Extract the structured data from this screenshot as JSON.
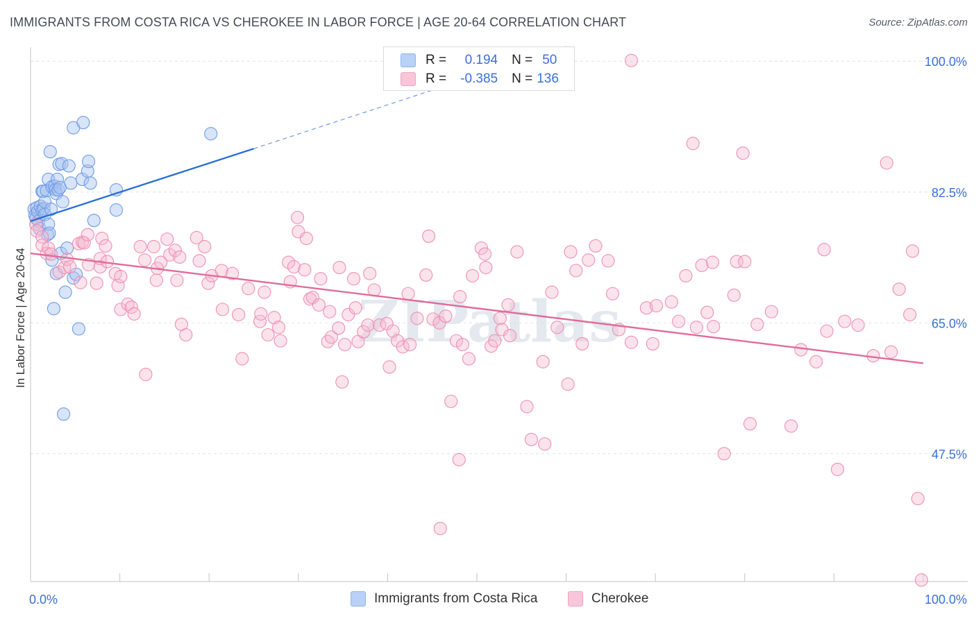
{
  "title": "IMMIGRANTS FROM COSTA RICA VS CHEROKEE IN LABOR FORCE | AGE 20-64 CORRELATION CHART",
  "source": "Source: ZipAtlas.com",
  "watermark": "ZIPatlas",
  "legend": {
    "row1": {
      "r_label": "R =",
      "r_value": "0.194",
      "n_label": "N =",
      "n_value": "50"
    },
    "row2": {
      "r_label": "R =",
      "r_value": "-0.385",
      "n_label": "N =",
      "n_value": "136"
    }
  },
  "chart_data": {
    "type": "scatter",
    "ylabel": "In Labor Force | Age 20-64",
    "xlabel": "",
    "x_tick_labels": [
      "0.0%",
      "100.0%"
    ],
    "y_tick_labels": [
      "100.0%",
      "82.5%",
      "65.0%",
      "47.5%"
    ],
    "y_ticks": [
      100.0,
      82.5,
      65.0,
      47.5
    ],
    "xlim": [
      0,
      100
    ],
    "ylim": [
      30.4,
      101.6
    ],
    "grid": true,
    "colors": {
      "blue": "#6e9be6",
      "pink": "#ee8fb2",
      "blue_line": "#2c6fd4",
      "pink_line": "#e06b9a"
    },
    "series": [
      {
        "name": "Immigrants from Costa Rica",
        "color": "#6e9be6",
        "trend": {
          "x": [
            0,
            25
          ],
          "y": [
            78.6,
            88.3
          ],
          "dashed_to": [
            60,
            102.0
          ]
        },
        "points": [
          [
            0.4,
            80.2
          ],
          [
            0.5,
            79.4
          ],
          [
            0.6,
            79.0
          ],
          [
            0.7,
            80.4
          ],
          [
            0.8,
            79.9
          ],
          [
            0.9,
            78.6
          ],
          [
            1.0,
            77.6
          ],
          [
            1.1,
            80.6
          ],
          [
            1.3,
            82.6
          ],
          [
            1.3,
            80.1
          ],
          [
            1.4,
            82.6
          ],
          [
            1.5,
            80.3
          ],
          [
            1.6,
            79.5
          ],
          [
            1.6,
            81.2
          ],
          [
            1.8,
            82.7
          ],
          [
            1.9,
            76.8
          ],
          [
            2.0,
            78.2
          ],
          [
            2.0,
            84.2
          ],
          [
            2.1,
            77.0
          ],
          [
            2.2,
            87.9
          ],
          [
            2.3,
            80.2
          ],
          [
            2.4,
            83.2
          ],
          [
            2.4,
            73.4
          ],
          [
            2.6,
            66.9
          ],
          [
            2.7,
            83.3
          ],
          [
            2.8,
            82.8
          ],
          [
            2.9,
            82.3
          ],
          [
            2.9,
            71.6
          ],
          [
            3.0,
            84.2
          ],
          [
            3.1,
            82.8
          ],
          [
            3.2,
            86.2
          ],
          [
            3.3,
            83.1
          ],
          [
            3.4,
            74.3
          ],
          [
            3.5,
            86.3
          ],
          [
            3.6,
            81.2
          ],
          [
            3.7,
            52.8
          ],
          [
            3.9,
            69.1
          ],
          [
            4.1,
            75.0
          ],
          [
            4.3,
            86.0
          ],
          [
            4.5,
            83.7
          ],
          [
            4.8,
            91.1
          ],
          [
            4.8,
            71.0
          ],
          [
            5.1,
            71.5
          ],
          [
            5.4,
            64.2
          ],
          [
            5.8,
            84.2
          ],
          [
            5.9,
            91.8
          ],
          [
            6.4,
            85.3
          ],
          [
            6.5,
            86.6
          ],
          [
            6.7,
            83.7
          ],
          [
            7.1,
            78.7
          ],
          [
            9.6,
            82.8
          ],
          [
            9.6,
            80.1
          ],
          [
            20.2,
            90.3
          ]
        ]
      },
      {
        "name": "Cherokee",
        "color": "#ee8fb2",
        "trend": {
          "x": [
            0,
            100
          ],
          "y": [
            74.3,
            59.6
          ]
        },
        "points": [
          [
            0.6,
            78.2
          ],
          [
            0.7,
            77.3
          ],
          [
            1.3,
            76.5
          ],
          [
            1.3,
            75.4
          ],
          [
            1.8,
            74.3
          ],
          [
            2.0,
            75.0
          ],
          [
            2.3,
            74.2
          ],
          [
            3.2,
            71.8
          ],
          [
            3.8,
            72.4
          ],
          [
            4.1,
            73.5
          ],
          [
            4.4,
            72.5
          ],
          [
            5.4,
            75.6
          ],
          [
            5.6,
            70.4
          ],
          [
            5.8,
            75.8
          ],
          [
            6.0,
            75.7
          ],
          [
            6.4,
            76.8
          ],
          [
            6.5,
            72.8
          ],
          [
            7.4,
            70.3
          ],
          [
            7.8,
            72.5
          ],
          [
            7.8,
            73.6
          ],
          [
            8.0,
            76.3
          ],
          [
            8.4,
            75.3
          ],
          [
            8.6,
            73.2
          ],
          [
            9.5,
            71.6
          ],
          [
            9.8,
            70.0
          ],
          [
            10.1,
            66.8
          ],
          [
            10.1,
            71.2
          ],
          [
            10.9,
            67.5
          ],
          [
            11.3,
            67.1
          ],
          [
            11.6,
            66.2
          ],
          [
            12.3,
            75.2
          ],
          [
            12.8,
            73.4
          ],
          [
            12.9,
            58.1
          ],
          [
            13.8,
            75.2
          ],
          [
            14.1,
            70.7
          ],
          [
            14.2,
            72.3
          ],
          [
            14.6,
            73.1
          ],
          [
            15.3,
            76.2
          ],
          [
            15.6,
            74.1
          ],
          [
            16.2,
            74.7
          ],
          [
            16.4,
            70.7
          ],
          [
            16.7,
            73.8
          ],
          [
            16.9,
            64.8
          ],
          [
            17.4,
            63.4
          ],
          [
            18.6,
            76.4
          ],
          [
            18.9,
            73.3
          ],
          [
            19.5,
            75.2
          ],
          [
            19.9,
            70.3
          ],
          [
            20.3,
            71.3
          ],
          [
            21.4,
            72.0
          ],
          [
            21.5,
            66.8
          ],
          [
            22.6,
            71.6
          ],
          [
            23.3,
            66.1
          ],
          [
            23.7,
            60.2
          ],
          [
            24.4,
            69.6
          ],
          [
            25.7,
            65.2
          ],
          [
            25.8,
            66.2
          ],
          [
            26.2,
            69.1
          ],
          [
            26.6,
            63.4
          ],
          [
            27.3,
            65.7
          ],
          [
            27.8,
            64.4
          ],
          [
            28.0,
            62.6
          ],
          [
            28.9,
            73.1
          ],
          [
            29.1,
            70.5
          ],
          [
            29.5,
            72.5
          ],
          [
            29.9,
            79.1
          ],
          [
            30.0,
            77.2
          ],
          [
            30.7,
            72.1
          ],
          [
            30.9,
            76.3
          ],
          [
            31.3,
            68.2
          ],
          [
            31.6,
            68.4
          ],
          [
            32.3,
            67.4
          ],
          [
            32.5,
            70.9
          ],
          [
            33.3,
            62.5
          ],
          [
            33.5,
            66.5
          ],
          [
            33.7,
            63.1
          ],
          [
            34.5,
            64.3
          ],
          [
            34.6,
            72.4
          ],
          [
            34.9,
            57.1
          ],
          [
            35.2,
            62.1
          ],
          [
            35.6,
            66.1
          ],
          [
            36.2,
            70.9
          ],
          [
            36.4,
            67.0
          ],
          [
            36.7,
            62.5
          ],
          [
            37.3,
            63.8
          ],
          [
            37.8,
            64.7
          ],
          [
            38.0,
            71.6
          ],
          [
            38.5,
            69.4
          ],
          [
            39.1,
            64.7
          ],
          [
            39.9,
            64.9
          ],
          [
            40.2,
            59.1
          ],
          [
            40.6,
            63.9
          ],
          [
            41.1,
            62.6
          ],
          [
            41.7,
            61.8
          ],
          [
            42.3,
            68.9
          ],
          [
            42.5,
            62.1
          ],
          [
            43.3,
            65.6
          ],
          [
            44.3,
            71.4
          ],
          [
            44.6,
            76.6
          ],
          [
            45.1,
            65.5
          ],
          [
            45.8,
            65.0
          ],
          [
            46.5,
            65.9
          ],
          [
            47.1,
            54.5
          ],
          [
            47.7,
            62.6
          ],
          [
            48.1,
            68.5
          ],
          [
            48.4,
            62.1
          ],
          [
            49.1,
            60.2
          ],
          [
            49.5,
            71.3
          ],
          [
            50.5,
            75.0
          ],
          [
            50.9,
            74.2
          ],
          [
            51.0,
            72.4
          ],
          [
            51.6,
            61.9
          ],
          [
            52.0,
            62.6
          ],
          [
            52.6,
            65.6
          ],
          [
            52.8,
            64.1
          ],
          [
            53.5,
            67.4
          ],
          [
            53.7,
            63.3
          ],
          [
            54.5,
            74.5
          ],
          [
            55.6,
            53.8
          ],
          [
            56.1,
            49.4
          ],
          [
            57.4,
            59.8
          ],
          [
            57.6,
            48.8
          ],
          [
            58.4,
            69.1
          ],
          [
            59.0,
            64.4
          ],
          [
            60.2,
            56.8
          ],
          [
            60.5,
            74.5
          ],
          [
            61.1,
            72.0
          ],
          [
            61.8,
            62.2
          ],
          [
            62.5,
            73.4
          ],
          [
            63.3,
            75.3
          ],
          [
            64.7,
            73.3
          ],
          [
            65.2,
            68.9
          ],
          [
            65.9,
            64.1
          ],
          [
            67.3,
            62.4
          ],
          [
            69.0,
            67.0
          ],
          [
            69.7,
            62.2
          ],
          [
            70.1,
            67.3
          ],
          [
            71.8,
            67.8
          ],
          [
            72.6,
            65.2
          ],
          [
            73.4,
            71.3
          ],
          [
            74.2,
            89.0
          ],
          [
            74.6,
            64.4
          ],
          [
            75.2,
            72.7
          ],
          [
            75.8,
            66.4
          ],
          [
            76.4,
            73.1
          ],
          [
            76.5,
            64.5
          ],
          [
            77.7,
            47.5
          ],
          [
            78.8,
            68.7
          ],
          [
            79.1,
            73.2
          ],
          [
            79.8,
            87.7
          ],
          [
            80.0,
            73.2
          ],
          [
            80.6,
            51.5
          ],
          [
            81.4,
            64.8
          ],
          [
            83.0,
            66.5
          ],
          [
            85.2,
            51.2
          ],
          [
            86.3,
            61.4
          ],
          [
            88.0,
            59.8
          ],
          [
            88.9,
            74.8
          ],
          [
            89.2,
            63.9
          ],
          [
            90.4,
            45.4
          ],
          [
            91.2,
            65.2
          ],
          [
            92.7,
            64.7
          ],
          [
            94.4,
            60.6
          ],
          [
            95.9,
            86.4
          ],
          [
            96.4,
            61.1
          ],
          [
            97.3,
            69.5
          ],
          [
            98.5,
            66.1
          ],
          [
            98.8,
            74.6
          ],
          [
            99.4,
            41.5
          ],
          [
            99.8,
            30.6
          ],
          [
            45.9,
            37.5
          ],
          [
            48.0,
            46.7
          ],
          [
            60.0,
            100.2
          ],
          [
            67.3,
            100.1
          ]
        ]
      }
    ]
  }
}
